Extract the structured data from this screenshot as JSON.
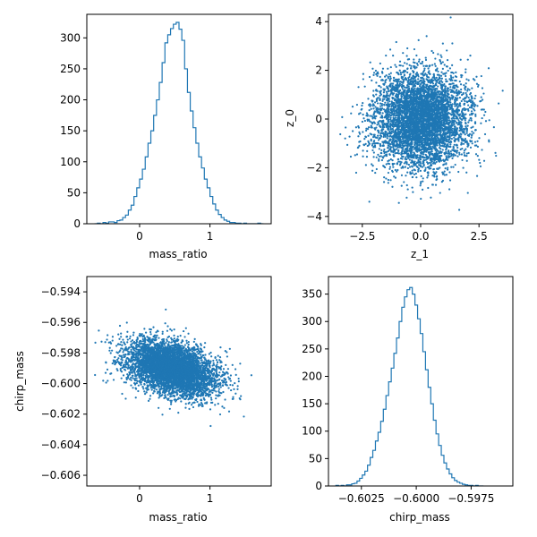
{
  "chart_data": [
    {
      "type": "histogram",
      "xlabel": "mass_ratio",
      "ylabel": "",
      "xlim": [
        -0.75,
        1.87
      ],
      "ylim": [
        0,
        338
      ],
      "xticks": [
        0,
        1
      ],
      "xtick_labels": [
        "0",
        "1"
      ],
      "yticks": [
        0,
        50,
        100,
        150,
        200,
        250,
        300
      ],
      "ytick_labels": [
        "0",
        "50",
        "100",
        "150",
        "200",
        "250",
        "300"
      ],
      "step_color": "#1f77b4",
      "bins": [
        [
          -0.62,
          0
        ],
        [
          -0.58,
          1
        ],
        [
          -0.54,
          0
        ],
        [
          -0.5,
          2
        ],
        [
          -0.46,
          1
        ],
        [
          -0.42,
          3
        ],
        [
          -0.38,
          3
        ],
        [
          -0.34,
          2
        ],
        [
          -0.3,
          5
        ],
        [
          -0.26,
          6
        ],
        [
          -0.22,
          10
        ],
        [
          -0.18,
          14
        ],
        [
          -0.14,
          22
        ],
        [
          -0.1,
          30
        ],
        [
          -0.06,
          44
        ],
        [
          -0.02,
          58
        ],
        [
          0.02,
          72
        ],
        [
          0.06,
          88
        ],
        [
          0.1,
          108
        ],
        [
          0.14,
          130
        ],
        [
          0.18,
          150
        ],
        [
          0.22,
          175
        ],
        [
          0.26,
          200
        ],
        [
          0.3,
          228
        ],
        [
          0.34,
          260
        ],
        [
          0.38,
          292
        ],
        [
          0.42,
          305
        ],
        [
          0.46,
          315
        ],
        [
          0.5,
          322
        ],
        [
          0.54,
          325
        ],
        [
          0.58,
          314
        ],
        [
          0.62,
          296
        ],
        [
          0.66,
          250
        ],
        [
          0.7,
          212
        ],
        [
          0.74,
          182
        ],
        [
          0.78,
          155
        ],
        [
          0.82,
          130
        ],
        [
          0.86,
          108
        ],
        [
          0.9,
          90
        ],
        [
          0.94,
          72
        ],
        [
          0.98,
          58
        ],
        [
          1.02,
          44
        ],
        [
          1.06,
          32
        ],
        [
          1.1,
          22
        ],
        [
          1.14,
          15
        ],
        [
          1.18,
          10
        ],
        [
          1.22,
          6
        ],
        [
          1.26,
          4
        ],
        [
          1.3,
          2
        ],
        [
          1.34,
          2
        ],
        [
          1.38,
          1
        ],
        [
          1.42,
          1
        ],
        [
          1.46,
          0
        ],
        [
          1.5,
          1
        ],
        [
          1.54,
          0
        ],
        [
          1.58,
          0
        ],
        [
          1.62,
          0
        ],
        [
          1.66,
          0
        ],
        [
          1.7,
          1
        ],
        [
          1.74,
          0
        ]
      ]
    },
    {
      "type": "scatter",
      "xlabel": "z_1",
      "ylabel": "z_0",
      "xlim": [
        -3.95,
        3.95
      ],
      "ylim": [
        -4.3,
        4.3
      ],
      "xticks": [
        -2.5,
        0.0,
        2.5
      ],
      "xtick_labels": [
        "−2.5",
        "0.0",
        "2.5"
      ],
      "yticks": [
        -4,
        -2,
        0,
        2,
        4
      ],
      "ytick_labels": [
        "−4",
        "−2",
        "0",
        "2",
        "4"
      ],
      "point_color": "#1f77b4",
      "distribution": {
        "n": 5000,
        "x_mean": 0.0,
        "x_sd": 1.0,
        "y_mean": 0.0,
        "y_sd": 1.0
      }
    },
    {
      "type": "scatter",
      "xlabel": "mass_ratio",
      "ylabel": "chirp_mass",
      "xlim": [
        -0.75,
        1.87
      ],
      "ylim": [
        -0.6067,
        -0.593
      ],
      "xticks": [
        0,
        1
      ],
      "xtick_labels": [
        "0",
        "1"
      ],
      "yticks": [
        -0.606,
        -0.604,
        -0.602,
        -0.6,
        -0.598,
        -0.596,
        -0.594
      ],
      "ytick_labels": [
        "−0.606",
        "−0.604",
        "−0.602",
        "−0.600",
        "−0.598",
        "−0.596",
        "−0.594"
      ],
      "point_color": "#1f77b4",
      "distribution": {
        "n": 5000,
        "x_mean": 0.45,
        "x_sd": 0.32,
        "y_mean": -0.599,
        "y_sd": 0.00085,
        "slope": -0.0011
      }
    },
    {
      "type": "histogram",
      "xlabel": "chirp_mass",
      "ylabel": "",
      "xlim": [
        -0.604,
        -0.5956
      ],
      "ylim": [
        0,
        382
      ],
      "xticks": [
        -0.6025,
        -0.6,
        -0.5975
      ],
      "xtick_labels": [
        "−0.6025",
        "−0.6000",
        "−0.5975"
      ],
      "yticks": [
        0,
        50,
        100,
        150,
        200,
        250,
        300,
        350
      ],
      "ytick_labels": [
        "0",
        "50",
        "100",
        "150",
        "200",
        "250",
        "300",
        "350"
      ],
      "step_color": "#1f77b4",
      "bins": [
        [
          -0.6036,
          1
        ],
        [
          -0.60348,
          0
        ],
        [
          -0.60336,
          1
        ],
        [
          -0.60324,
          0
        ],
        [
          -0.60312,
          2
        ],
        [
          -0.603,
          2
        ],
        [
          -0.60288,
          4
        ],
        [
          -0.60276,
          5
        ],
        [
          -0.60264,
          9
        ],
        [
          -0.60252,
          14
        ],
        [
          -0.6024,
          20
        ],
        [
          -0.60228,
          27
        ],
        [
          -0.60216,
          38
        ],
        [
          -0.60204,
          52
        ],
        [
          -0.60192,
          65
        ],
        [
          -0.6018,
          82
        ],
        [
          -0.60168,
          98
        ],
        [
          -0.60156,
          118
        ],
        [
          -0.60144,
          140
        ],
        [
          -0.60132,
          165
        ],
        [
          -0.6012,
          190
        ],
        [
          -0.60108,
          215
        ],
        [
          -0.60096,
          242
        ],
        [
          -0.60084,
          270
        ],
        [
          -0.60072,
          300
        ],
        [
          -0.6006,
          326
        ],
        [
          -0.60048,
          345
        ],
        [
          -0.60036,
          358
        ],
        [
          -0.60024,
          362
        ],
        [
          -0.60012,
          350
        ],
        [
          -0.6,
          330
        ],
        [
          -0.59988,
          305
        ],
        [
          -0.59976,
          278
        ],
        [
          -0.59964,
          245
        ],
        [
          -0.59952,
          212
        ],
        [
          -0.5994,
          180
        ],
        [
          -0.59928,
          150
        ],
        [
          -0.59916,
          120
        ],
        [
          -0.59904,
          95
        ],
        [
          -0.59892,
          74
        ],
        [
          -0.5988,
          56
        ],
        [
          -0.59868,
          42
        ],
        [
          -0.59856,
          31
        ],
        [
          -0.59844,
          22
        ],
        [
          -0.59832,
          15
        ],
        [
          -0.5982,
          10
        ],
        [
          -0.59808,
          7
        ],
        [
          -0.59796,
          5
        ],
        [
          -0.59784,
          3
        ],
        [
          -0.59772,
          2
        ],
        [
          -0.5976,
          1
        ],
        [
          -0.59748,
          1
        ],
        [
          -0.59736,
          0
        ],
        [
          -0.59724,
          1
        ],
        [
          -0.59712,
          0
        ],
        [
          -0.597,
          0
        ]
      ]
    }
  ]
}
